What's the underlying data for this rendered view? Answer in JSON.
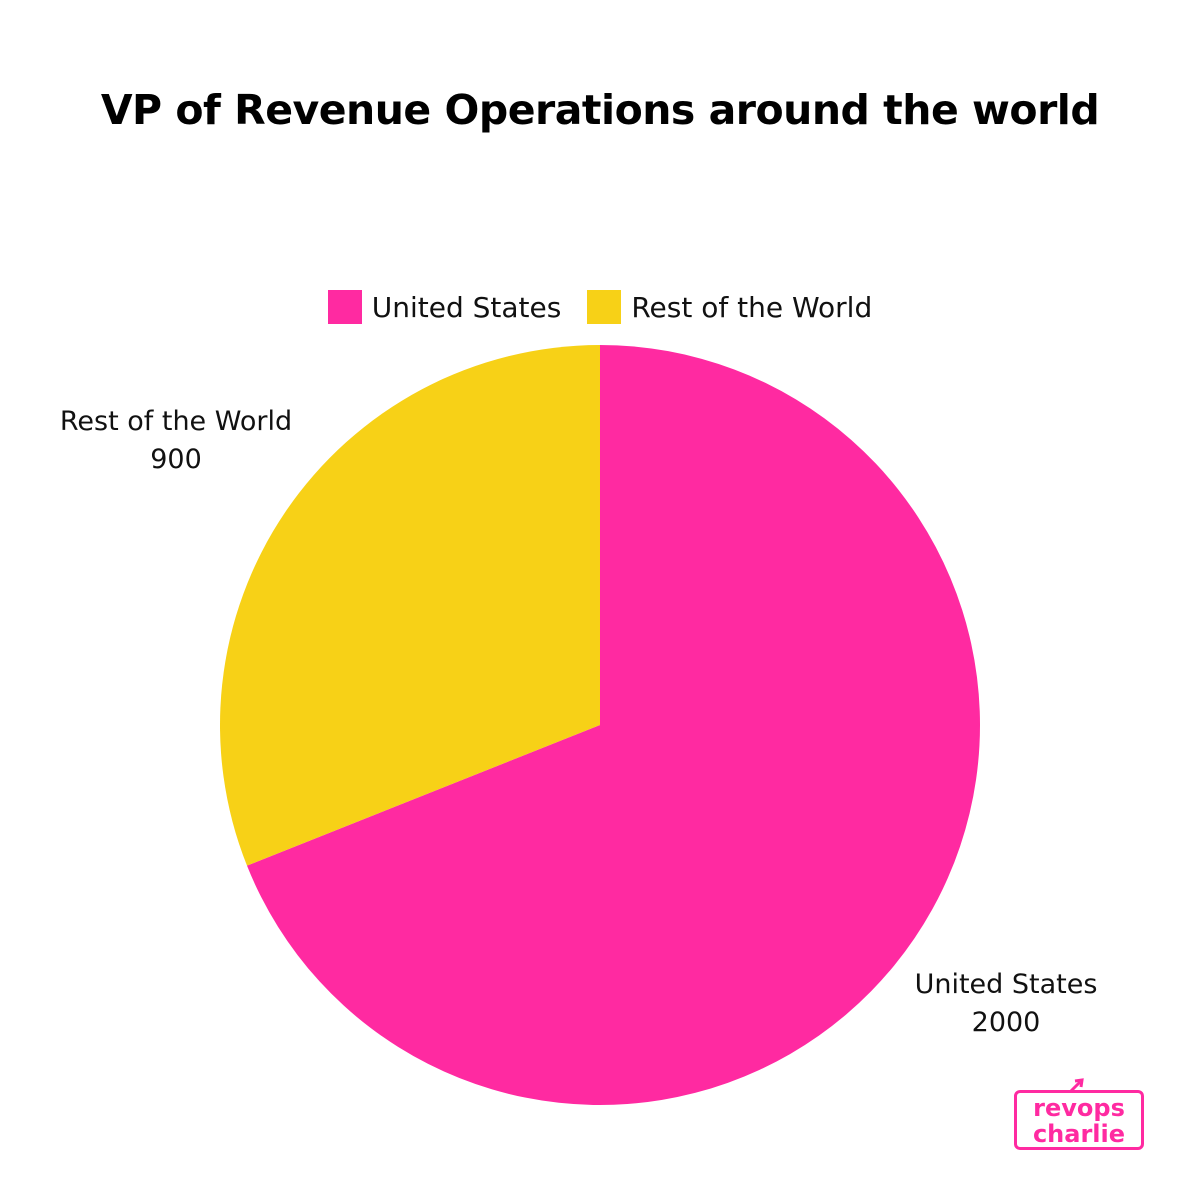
{
  "chart_data": {
    "type": "pie",
    "title": "VP of Revenue Operations around the world",
    "categories": [
      "United States",
      "Rest of the World"
    ],
    "values": [
      2000,
      900
    ],
    "colors": [
      "#ff2aa1",
      "#f7d117"
    ],
    "legend": "top",
    "start_angle_deg": 0,
    "direction": "clockwise"
  },
  "logo": {
    "line1": "revops",
    "line2": "charlie",
    "color": "#ff2aa1"
  }
}
